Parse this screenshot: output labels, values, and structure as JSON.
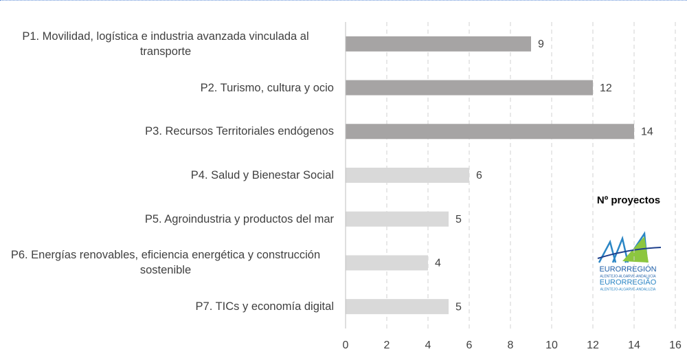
{
  "chart_data": {
    "type": "bar",
    "orientation": "horizontal",
    "categories": [
      "P1. Movilidad, logística e industria avanzada vinculada al transporte",
      "P2. Turismo, cultura y ocio",
      "P3. Recursos Territoriales endógenos",
      "P4. Salud y Bienestar Social",
      "P5. Agroindustria y productos del mar",
      "P6. Energías renovables, eficiencia energética y construcción sostenible",
      "P7. TICs y economía digital"
    ],
    "values": [
      9,
      12,
      14,
      6,
      5,
      4,
      5
    ],
    "colors": [
      "#a6a4a4",
      "#a6a4a4",
      "#a6a4a4",
      "#d9d9d9",
      "#d9d9d9",
      "#d9d9d9",
      "#d9d9d9"
    ],
    "xlim": [
      0,
      16
    ],
    "xticks": [
      0,
      2,
      4,
      6,
      8,
      10,
      12,
      14,
      16
    ],
    "grid": true,
    "annotation": "Nº proyectos",
    "logo": [
      "EURORREGIÓN",
      "ALENTEJO-ALGARVE-ANDALUCÍA",
      "EURORREGIÃO",
      "ALENTEJO-ALGARVE-ANDALUZIA"
    ]
  }
}
